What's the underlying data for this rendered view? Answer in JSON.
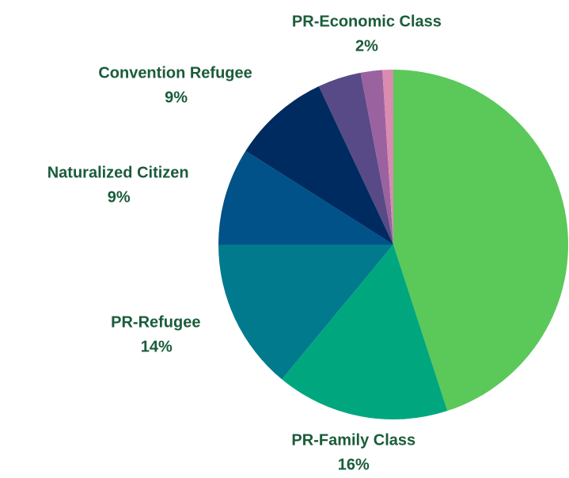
{
  "chart_data": {
    "type": "pie",
    "categories": [
      null,
      "PR-Family Class",
      "PR-Refugee",
      "Naturalized Citizen",
      "Convention Refugee",
      null,
      "PR-Economic Class",
      null
    ],
    "values": [
      45,
      16,
      14,
      9,
      9,
      4,
      2,
      1
    ],
    "value_labels": [
      null,
      "16%",
      "14%",
      "9%",
      "9%",
      null,
      "2%",
      null
    ],
    "colors": [
      "#5bc85a",
      "#00a77e",
      "#007a8c",
      "#005289",
      "#002b60",
      "#574a86",
      "#9b62a0",
      "#d98bb0"
    ]
  }
}
